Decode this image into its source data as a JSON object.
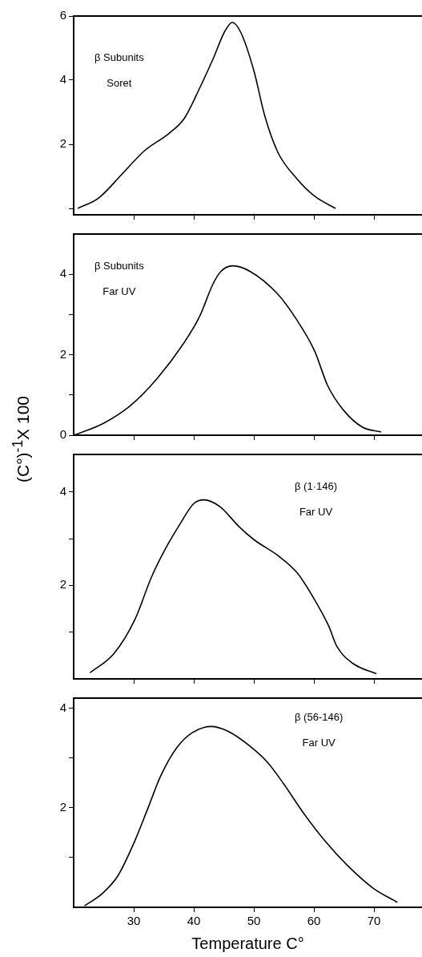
{
  "chart_data": [
    {
      "type": "line",
      "annotations": [
        "β Subunits",
        "Soret"
      ],
      "xlim": [
        20,
        78
      ],
      "xticks": [
        30,
        40,
        50,
        60,
        70
      ],
      "ylim": [
        -0.2,
        6
      ],
      "yticks": [
        {
          "value": 0,
          "label": null
        },
        2,
        4,
        6
      ],
      "tick_labels": "y",
      "marker": "none",
      "line_style": "solid",
      "series": [
        {
          "color": "#000000",
          "x": [
            20.7,
            24.2,
            28.2,
            31.8,
            35.8,
            38.4,
            41.1,
            43.3,
            45.1,
            46.4,
            47.8,
            50,
            51.8,
            54,
            57.1,
            60.2,
            63.6
          ],
          "values": [
            0,
            0.33,
            1.1,
            1.8,
            2.33,
            2.8,
            3.8,
            4.7,
            5.5,
            5.8,
            5.5,
            4.3,
            2.9,
            1.75,
            0.94,
            0.37,
            0
          ]
        }
      ]
    },
    {
      "type": "line",
      "annotations": [
        "β Subunits",
        "Far UV"
      ],
      "ylabel": "(C°)$^{-1}$X 100",
      "xlim": [
        20,
        78
      ],
      "xticks": [
        30,
        40,
        50,
        60,
        70
      ],
      "ylim": [
        0,
        5
      ],
      "yticks": [
        0,
        {
          "value": 1,
          "label": null
        },
        2,
        {
          "value": 3,
          "label": null
        },
        4
      ],
      "tick_labels": "y",
      "marker": "none",
      "line_style": "solid",
      "series": [
        {
          "color": "#000000",
          "x": [
            20.1,
            25,
            29.4,
            33.9,
            38.3,
            41,
            43.2,
            44.5,
            46.5,
            49.4,
            53.9,
            57,
            60.1,
            62.3,
            65,
            68.1,
            71.2
          ],
          "values": [
            0,
            0.3,
            0.73,
            1.41,
            2.28,
            2.96,
            3.76,
            4.07,
            4.21,
            4.07,
            3.52,
            2.9,
            2.1,
            1.23,
            0.61,
            0.2,
            0.08
          ]
        }
      ]
    },
    {
      "type": "line",
      "annotations": [
        "β (1·146)",
        "Far UV"
      ],
      "xlim": [
        20,
        78
      ],
      "xticks": [
        30,
        40,
        50,
        60,
        70
      ],
      "ylim": [
        0,
        4.8
      ],
      "yticks": [
        {
          "value": 1,
          "label": null
        },
        2,
        {
          "value": 3,
          "label": null
        },
        4
      ],
      "tick_labels": "y",
      "marker": "none",
      "line_style": "solid",
      "series": [
        {
          "color": "#000000",
          "x": [
            22.7,
            26.7,
            30.2,
            32.9,
            35.1,
            37.7,
            40,
            41.7,
            44.4,
            47.5,
            50.1,
            54.1,
            57.2,
            59.9,
            62.5,
            63.8,
            66.5,
            70.4
          ],
          "values": [
            0.13,
            0.54,
            1.27,
            2.16,
            2.74,
            3.31,
            3.75,
            3.83,
            3.68,
            3.26,
            2.97,
            2.63,
            2.27,
            1.74,
            1.12,
            0.7,
            0.33,
            0.11
          ]
        }
      ]
    },
    {
      "type": "line",
      "annotations": [
        "β (56-146)",
        "Far UV"
      ],
      "xlabel": "Temperature C°",
      "xlim": [
        20,
        78
      ],
      "xticks": [
        30,
        40,
        50,
        60,
        70
      ],
      "ylim": [
        0,
        4.2
      ],
      "yticks": [
        {
          "value": 1,
          "label": null
        },
        2,
        {
          "value": 3,
          "label": null
        },
        4
      ],
      "marker": "none",
      "line_style": "solid",
      "series": [
        {
          "color": "#000000",
          "x": [
            21.8,
            24.8,
            27.4,
            30.1,
            32.3,
            34.5,
            37.2,
            39.8,
            42.9,
            45.6,
            49.1,
            52.2,
            54.9,
            58.4,
            62,
            65.5,
            69.9,
            73.9
          ],
          "values": [
            0.03,
            0.28,
            0.64,
            1.31,
            1.97,
            2.64,
            3.21,
            3.51,
            3.63,
            3.54,
            3.26,
            2.92,
            2.49,
            1.87,
            1.31,
            0.85,
            0.38,
            0.1
          ]
        }
      ]
    }
  ]
}
